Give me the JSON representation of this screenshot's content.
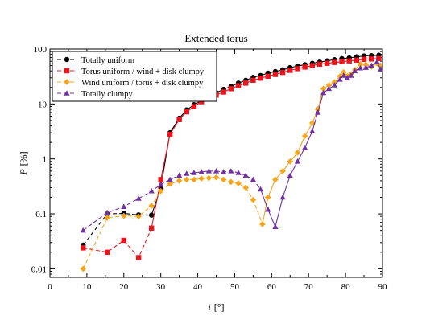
{
  "chart_data": {
    "type": "line",
    "title": "Extended torus",
    "xlabel": "i [°]",
    "xlabel_var": "i",
    "xlabel_unit": "[°]",
    "ylabel": "P [%]",
    "ylabel_var": "P",
    "ylabel_unit": "[%]",
    "xlim": [
      0,
      90
    ],
    "ylim": [
      0.007,
      100
    ],
    "yscale": "log",
    "xticks": [
      0,
      10,
      20,
      30,
      40,
      50,
      60,
      70,
      80,
      90
    ],
    "yticks": [
      0.01,
      0.1,
      1,
      10,
      100
    ],
    "ytick_labels": [
      "0.01",
      "0.1",
      "1",
      "10",
      "100"
    ],
    "grid": false,
    "legend_position": "top-left",
    "series": [
      {
        "name": "Totally uniform",
        "color": "#000000",
        "marker": "circle",
        "segments": [
          {
            "style": "dashed",
            "points": [
              [
                9,
                0.027
              ],
              [
                15.5,
                0.1
              ],
              [
                20,
                0.102
              ],
              [
                24,
                0.096
              ],
              [
                27.5,
                0.095
              ]
            ]
          },
          {
            "style": "solid",
            "points": [
              [
                27.5,
                0.095
              ],
              [
                30,
                0.3
              ],
              [
                32.5,
                3.0
              ],
              [
                35,
                5.5
              ],
              [
                37,
                7.8
              ],
              [
                39,
                9.7
              ],
              [
                41,
                11.5
              ],
              [
                43,
                13.5
              ],
              [
                45,
                16
              ],
              [
                47,
                18.5
              ],
              [
                49,
                21
              ],
              [
                51,
                24
              ],
              [
                53,
                27
              ],
              [
                55,
                30.5
              ],
              [
                57,
                33
              ],
              [
                59,
                36.5
              ],
              [
                61,
                39
              ],
              [
                63,
                42
              ],
              [
                65,
                46
              ],
              [
                67,
                49
              ],
              [
                69,
                52
              ],
              [
                71,
                55
              ],
              [
                73,
                58
              ],
              [
                75,
                61
              ],
              [
                77,
                64
              ],
              [
                79,
                67
              ],
              [
                81,
                69
              ],
              [
                83,
                72
              ],
              [
                85,
                75
              ],
              [
                87,
                76
              ],
              [
                89,
                77
              ]
            ]
          }
        ]
      },
      {
        "name": "Torus uniform / wind + disk clumpy",
        "color": "#e8141e",
        "marker": "square",
        "segments": [
          {
            "style": "dashed",
            "points": [
              [
                9,
                0.024
              ],
              [
                15.5,
                0.02
              ],
              [
                20,
                0.033
              ],
              [
                24,
                0.016
              ],
              [
                27.5,
                0.055
              ]
            ]
          },
          {
            "style": "solid",
            "points": [
              [
                27.5,
                0.055
              ],
              [
                30,
                0.42
              ],
              [
                32.5,
                2.8
              ],
              [
                35,
                5.2
              ],
              [
                37,
                7.2
              ],
              [
                39,
                9.0
              ],
              [
                41,
                11
              ],
              [
                43,
                12.5
              ],
              [
                45,
                14.5
              ],
              [
                47,
                16.5
              ],
              [
                49,
                19
              ],
              [
                51,
                21.5
              ],
              [
                53,
                24
              ],
              [
                55,
                27
              ],
              [
                57,
                29.5
              ],
              [
                59,
                32
              ],
              [
                61,
                34.5
              ],
              [
                63,
                37.5
              ],
              [
                65,
                41
              ],
              [
                67,
                44
              ],
              [
                69,
                47
              ],
              [
                71,
                50
              ],
              [
                73,
                53
              ],
              [
                75,
                55
              ],
              [
                77,
                57
              ],
              [
                79,
                59
              ],
              [
                81,
                61
              ],
              [
                83,
                63
              ],
              [
                85,
                65
              ],
              [
                87,
                66
              ],
              [
                89,
                67
              ]
            ]
          }
        ]
      },
      {
        "name": "Wind uniform / torus + disk clumpy",
        "color": "#f5a51c",
        "marker": "diamond",
        "segments": [
          {
            "style": "dashed",
            "points": [
              [
                9,
                0.01
              ],
              [
                15.5,
                0.085
              ],
              [
                20,
                0.092
              ],
              [
                24,
                0.09
              ],
              [
                27.5,
                0.14
              ],
              [
                30,
                0.26
              ],
              [
                32.5,
                0.35
              ],
              [
                35,
                0.4
              ],
              [
                37,
                0.42
              ],
              [
                39,
                0.42
              ],
              [
                41,
                0.44
              ],
              [
                43,
                0.45
              ],
              [
                45,
                0.46
              ],
              [
                47,
                0.42
              ],
              [
                49,
                0.38
              ],
              [
                51,
                0.36
              ],
              [
                53,
                0.3
              ],
              [
                55,
                0.18
              ],
              [
                57.5,
                0.065
              ]
            ]
          },
          {
            "style": "solid",
            "points": [
              [
                57.5,
                0.065
              ],
              [
                59,
                0.2
              ],
              [
                61,
                0.42
              ],
              [
                63,
                0.6
              ],
              [
                65,
                0.9
              ],
              [
                67,
                1.3
              ],
              [
                69,
                2.6
              ],
              [
                71,
                4.5
              ],
              [
                72.5,
                8
              ],
              [
                74,
                19
              ],
              [
                75.5,
                22
              ],
              [
                77,
                25
              ],
              [
                78.5,
                32
              ],
              [
                79.5,
                38
              ],
              [
                80.5,
                32
              ],
              [
                81.5,
                35
              ],
              [
                82.5,
                42
              ],
              [
                84,
                53
              ],
              [
                85.5,
                52
              ],
              [
                87,
                48
              ],
              [
                88.5,
                55
              ],
              [
                89.5,
                50
              ]
            ]
          }
        ]
      },
      {
        "name": "Totally clumpy",
        "color": "#7030a0",
        "marker": "triangle",
        "segments": [
          {
            "style": "dashed",
            "points": [
              [
                9,
                0.05
              ],
              [
                15.5,
                0.105
              ],
              [
                20,
                0.135
              ],
              [
                24,
                0.19
              ],
              [
                27.5,
                0.26
              ],
              [
                30,
                0.34
              ],
              [
                32.5,
                0.42
              ],
              [
                35,
                0.5
              ],
              [
                37,
                0.54
              ],
              [
                39,
                0.56
              ],
              [
                41,
                0.58
              ],
              [
                43,
                0.6
              ],
              [
                45,
                0.6
              ],
              [
                47,
                0.58
              ],
              [
                49,
                0.6
              ],
              [
                51,
                0.56
              ],
              [
                53,
                0.5
              ],
              [
                55,
                0.42
              ],
              [
                57,
                0.28
              ]
            ]
          },
          {
            "style": "solid",
            "points": [
              [
                57,
                0.28
              ],
              [
                59,
                0.12
              ],
              [
                61,
                0.058
              ],
              [
                63,
                0.2
              ],
              [
                65,
                0.5
              ],
              [
                67,
                0.9
              ],
              [
                69,
                1.6
              ],
              [
                71,
                3.2
              ],
              [
                72.5,
                7
              ],
              [
                74,
                16
              ],
              [
                75.5,
                19
              ],
              [
                77,
                22
              ],
              [
                78.5,
                28
              ],
              [
                79.5,
                33
              ],
              [
                80.5,
                30
              ],
              [
                81.5,
                33
              ],
              [
                82.5,
                40
              ],
              [
                84,
                45
              ],
              [
                85.5,
                46
              ],
              [
                87,
                50
              ],
              [
                88.5,
                58
              ],
              [
                89.5,
                43
              ]
            ]
          }
        ]
      }
    ]
  }
}
